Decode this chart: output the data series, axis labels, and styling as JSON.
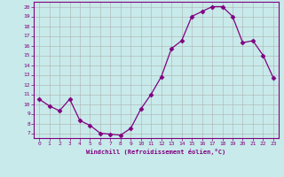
{
  "x": [
    0,
    1,
    2,
    3,
    4,
    5,
    6,
    7,
    8,
    9,
    10,
    11,
    12,
    13,
    14,
    15,
    16,
    17,
    18,
    19,
    20,
    21,
    22,
    23
  ],
  "y": [
    10.5,
    9.8,
    9.3,
    10.5,
    8.3,
    7.8,
    7.0,
    6.9,
    6.8,
    7.5,
    9.5,
    11.0,
    12.8,
    15.7,
    16.5,
    19.0,
    19.5,
    20.0,
    20.0,
    19.0,
    16.3,
    16.5,
    15.0,
    12.7
  ],
  "line_color": "#800080",
  "marker": "D",
  "marker_size": 2.5,
  "background_color": "#c8eaea",
  "grid_color": "#b0b0b0",
  "xlabel": "Windchill (Refroidissement éolien,°C)",
  "xlim": [
    -0.5,
    23.5
  ],
  "ylim": [
    6.5,
    20.5
  ],
  "yticks": [
    7,
    8,
    9,
    10,
    11,
    12,
    13,
    14,
    15,
    16,
    17,
    18,
    19,
    20
  ],
  "xticks": [
    0,
    1,
    2,
    3,
    4,
    5,
    6,
    7,
    8,
    9,
    10,
    11,
    12,
    13,
    14,
    15,
    16,
    17,
    18,
    19,
    20,
    21,
    22,
    23
  ],
  "tick_color": "#800080",
  "label_color": "#800080",
  "spine_color": "#800080"
}
